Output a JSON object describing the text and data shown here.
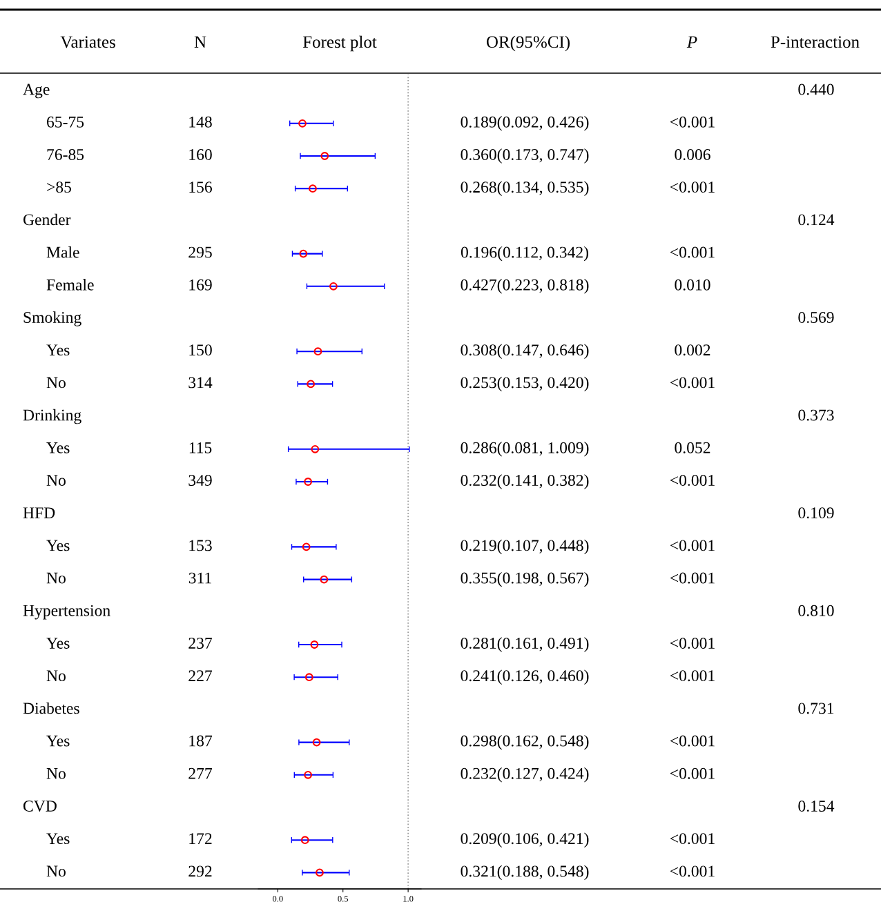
{
  "chart_data": [
    {
      "type": "other",
      "title": "Variates",
      "categories": [
        "Age",
        "65-75",
        "76-85",
        ">85",
        "Gender",
        "Male",
        "Female",
        "Smoking",
        "Yes",
        "No",
        "Drinking",
        "Yes",
        "No",
        "HFD",
        "Yes",
        "No",
        "Hypertension",
        "Yes",
        "No",
        "Diabetes",
        "Yes",
        "No",
        "CVD",
        "Yes",
        "No"
      ]
    },
    {
      "type": "other",
      "title": "N",
      "categories": [
        null,
        "148",
        "160",
        "156",
        null,
        "295",
        "169",
        null,
        "150",
        "314",
        null,
        "115",
        "349",
        null,
        "153",
        "311",
        null,
        "237",
        "227",
        null,
        "187",
        "277",
        null,
        "172",
        "292"
      ]
    },
    {
      "type": "scatter",
      "title": "Forest plot",
      "categories": [
        null,
        null,
        null,
        null,
        null,
        null,
        null,
        null,
        null,
        null,
        null,
        null,
        null,
        null,
        null,
        null,
        null,
        null,
        null,
        null,
        null,
        null,
        null,
        null,
        null
      ],
      "values": [
        null,
        0.189,
        0.36,
        0.268,
        null,
        0.196,
        0.427,
        null,
        0.308,
        0.253,
        null,
        0.286,
        0.232,
        null,
        0.219,
        0.355,
        null,
        0.281,
        0.241,
        null,
        0.298,
        0.232,
        null,
        0.209,
        0.321
      ],
      "errors": [
        null,
        [
          0.092,
          0.426
        ],
        [
          0.173,
          0.747
        ],
        [
          0.134,
          0.535
        ],
        null,
        [
          0.112,
          0.342
        ],
        [
          0.223,
          0.818
        ],
        null,
        [
          0.147,
          0.646
        ],
        [
          0.153,
          0.42
        ],
        null,
        [
          0.081,
          1.009
        ],
        [
          0.141,
          0.382
        ],
        null,
        [
          0.107,
          0.448
        ],
        [
          0.198,
          0.567
        ],
        null,
        [
          0.161,
          0.491
        ],
        [
          0.126,
          0.46
        ],
        null,
        [
          0.162,
          0.548
        ],
        [
          0.127,
          0.424
        ],
        null,
        [
          0.106,
          0.421
        ],
        [
          0.188,
          0.548
        ]
      ],
      "orientation": "horizontal",
      "color": "#0000ff",
      "colors": [
        null,
        "#ff0000",
        "#ff0000",
        "#ff0000",
        null,
        "#ff0000",
        "#ff0000",
        null,
        "#ff0000",
        "#ff0000",
        null,
        "#ff0000",
        "#ff0000",
        null,
        "#ff0000",
        "#ff0000",
        null,
        "#ff0000",
        "#ff0000",
        null,
        "#ff0000",
        "#ff0000",
        null,
        "#ff0000",
        "#ff0000"
      ],
      "marker": "circle",
      "xlim": [
        -0.15,
        1.1
      ],
      "xticks": [
        {
          "value": 0,
          "label": "0.0"
        },
        0.5,
        {
          "value": 1,
          "label": "1.0"
        }
      ],
      "ref_lines": [
        {
          "axis": "x",
          "value": 1,
          "color": "#999999",
          "line_style": "dotted"
        }
      ],
      "tick_labels": "x",
      "grid": false,
      "legend": false
    },
    {
      "type": "other",
      "title": "OR(95%CI)",
      "categories": [
        null,
        "0.189(0.092, 0.426)",
        "0.360(0.173, 0.747)",
        "0.268(0.134, 0.535)",
        null,
        "0.196(0.112, 0.342)",
        "0.427(0.223, 0.818)",
        null,
        "0.308(0.147, 0.646)",
        "0.253(0.153, 0.420)",
        null,
        "0.286(0.081, 1.009)",
        "0.232(0.141, 0.382)",
        null,
        "0.219(0.107, 0.448)",
        "0.355(0.198, 0.567)",
        null,
        "0.281(0.161, 0.491)",
        "0.241(0.126, 0.460)",
        null,
        "0.298(0.162, 0.548)",
        "0.232(0.127, 0.424)",
        null,
        "0.209(0.106, 0.421)",
        "0.321(0.188, 0.548)"
      ]
    },
    {
      "type": "other",
      "title": "P",
      "categories": [
        null,
        "<0.001",
        "0.006",
        "<0.001",
        null,
        "<0.001",
        "0.010",
        null,
        "0.002",
        "<0.001",
        null,
        "0.052",
        "<0.001",
        null,
        "<0.001",
        "<0.001",
        null,
        "<0.001",
        "<0.001",
        null,
        "<0.001",
        "<0.001",
        null,
        "<0.001",
        "<0.001"
      ]
    },
    {
      "type": "other",
      "title": "P-interaction",
      "categories": [
        "0.440",
        null,
        null,
        null,
        "0.124",
        null,
        null,
        "0.569",
        null,
        null,
        "0.373",
        null,
        null,
        "0.109",
        null,
        null,
        "0.810",
        null,
        null,
        "0.731",
        null,
        null,
        "0.154",
        null,
        null
      ]
    }
  ]
}
